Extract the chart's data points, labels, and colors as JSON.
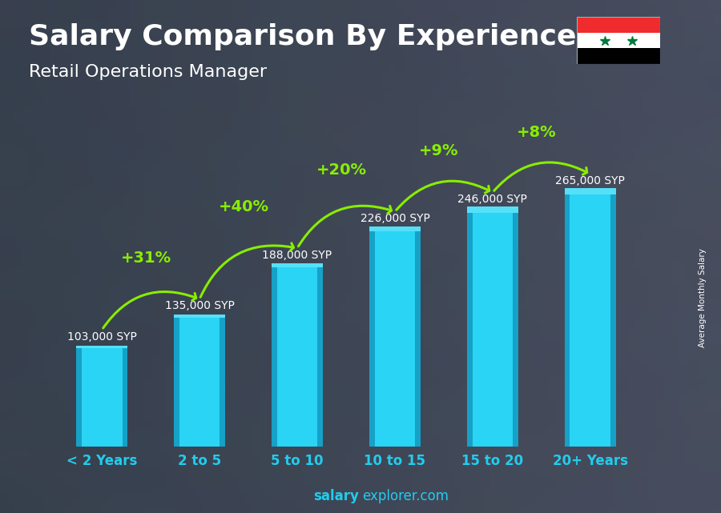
{
  "title": "Salary Comparison By Experience",
  "subtitle": "Retail Operations Manager",
  "categories": [
    "< 2 Years",
    "2 to 5",
    "5 to 10",
    "10 to 15",
    "15 to 20",
    "20+ Years"
  ],
  "values": [
    103000,
    135000,
    188000,
    226000,
    246000,
    265000
  ],
  "value_labels": [
    "103,000 SYP",
    "135,000 SYP",
    "188,000 SYP",
    "226,000 SYP",
    "246,000 SYP",
    "265,000 SYP"
  ],
  "pct_changes": [
    null,
    "+31%",
    "+40%",
    "+20%",
    "+9%",
    "+8%"
  ],
  "bar_face_color": "#29d4f5",
  "bar_left_color": "#1090b8",
  "bar_right_color": "#0e7fa8",
  "bar_top_color": "#55e0f8",
  "bg_color": "#4a5a6a",
  "overlay_color": "#3a4a5a",
  "title_color": "#ffffff",
  "subtitle_color": "#ffffff",
  "value_label_color": "#ffffff",
  "pct_color": "#88ee00",
  "xticklabel_color": "#22ccee",
  "ylabel_text": "Average Monthly Salary",
  "footer_salary": "salary",
  "footer_rest": "explorer.com",
  "footer_color": "#22ccee",
  "ylim": [
    0,
    320000
  ],
  "title_fontsize": 26,
  "subtitle_fontsize": 16,
  "bar_width": 0.52,
  "value_label_fontsize": 10,
  "pct_fontsize": 14,
  "xticklabel_fontsize": 12,
  "flag_red": "#EF2B2D",
  "flag_white": "#ffffff",
  "flag_black": "#000000",
  "flag_green": "#007A3D"
}
